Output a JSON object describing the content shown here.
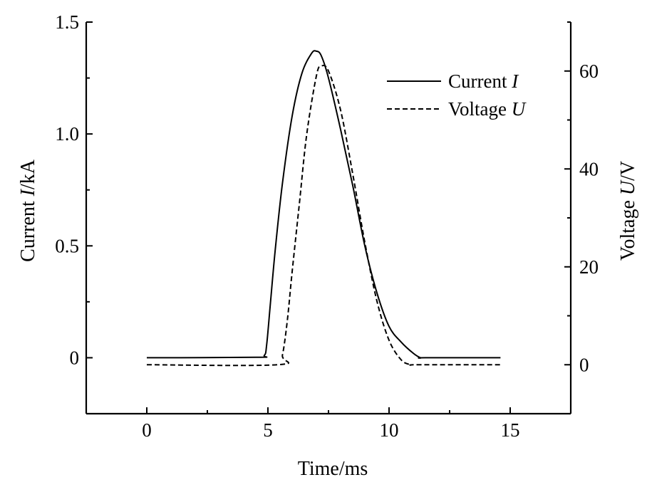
{
  "chart_data": {
    "type": "line",
    "title": "",
    "xlabel": "Time/ms",
    "ylabel_left": {
      "text": "Current ",
      "var": "I",
      "unit": "/kA"
    },
    "ylabel_right": {
      "text": "Voltage ",
      "var": "U",
      "unit": "/V"
    },
    "xlim": [
      -2.5,
      17.5
    ],
    "ylim_left": [
      -0.25,
      1.5
    ],
    "ylim_right": [
      -10,
      70
    ],
    "x_ticks": [
      0,
      5,
      10,
      15
    ],
    "x_tick_labels": [
      "0",
      "5",
      "10",
      "15"
    ],
    "y_left_ticks": [
      0,
      0.5,
      1.0,
      1.5
    ],
    "y_left_tick_labels": [
      "0",
      "0.5",
      "1.0",
      "1.5"
    ],
    "y_right_ticks": [
      0,
      20,
      40,
      60
    ],
    "y_right_tick_labels": [
      "0",
      "20",
      "40",
      "60"
    ],
    "grid": false,
    "legend_position": "top-right",
    "series": [
      {
        "name": "Current I",
        "label_text": "Current ",
        "label_var": "I",
        "axis": "left",
        "style": "solid",
        "color": "#000000",
        "x": [
          0,
          4.5,
          4.85,
          4.95,
          5.1,
          5.3,
          5.6,
          6.0,
          6.4,
          6.8,
          7.0,
          7.2,
          7.5,
          8.0,
          8.5,
          9.0,
          9.5,
          10.0,
          10.5,
          11.0,
          11.3,
          11.5,
          14.6
        ],
        "values": [
          0,
          0.002,
          0.01,
          0.06,
          0.24,
          0.48,
          0.78,
          1.08,
          1.27,
          1.36,
          1.37,
          1.35,
          1.25,
          1.02,
          0.77,
          0.5,
          0.29,
          0.14,
          0.07,
          0.02,
          0,
          0,
          0
        ]
      },
      {
        "name": "Voltage U",
        "label_text": "Voltage ",
        "label_var": "U",
        "axis": "right",
        "style": "dashed",
        "color": "#000000",
        "x": [
          0,
          5.4,
          5.6,
          5.8,
          6.0,
          6.3,
          6.6,
          7.0,
          7.2,
          7.5,
          8.0,
          8.5,
          9.0,
          9.5,
          10.0,
          10.5,
          10.9,
          11.2,
          14.6
        ],
        "values": [
          0,
          0,
          2,
          9,
          19,
          33,
          47,
          59,
          61,
          60,
          52,
          39,
          25,
          13,
          5,
          1,
          0,
          0,
          0
        ]
      }
    ]
  }
}
